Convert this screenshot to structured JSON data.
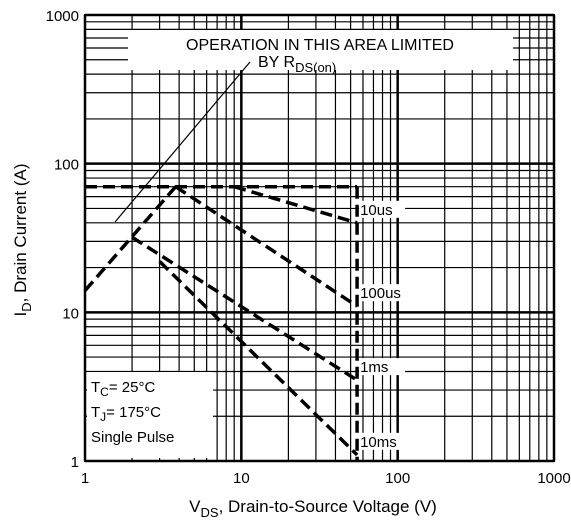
{
  "chart_data": {
    "type": "line",
    "xlabel": {
      "main": "V",
      "sub": "DS",
      "rest": ", Drain-to-Source Voltage (V)"
    },
    "ylabel": {
      "main": "I",
      "sub": "D",
      "rest": ", Drain Current (A)"
    },
    "xscale": "log",
    "yscale": "log",
    "xlim": [
      1,
      1000
    ],
    "ylim": [
      1,
      1000
    ],
    "xticks": [
      1,
      10,
      100,
      1000
    ],
    "yticks": [
      1,
      10,
      100,
      1000
    ],
    "grid": true,
    "minor_grid": true,
    "annotation": {
      "line1": "OPERATION IN THIS AREA LIMITED",
      "line2": "BY R",
      "line2_sub": "DS(on)"
    },
    "conditions": [
      {
        "main": "T",
        "sub": "C",
        "rest": "= 25°C"
      },
      {
        "main": "T",
        "sub": "J",
        "rest": "= 175°C"
      },
      {
        "main": "Single Pulse"
      }
    ],
    "series": [
      {
        "color": "#000000",
        "x": [
          1,
          3.8
        ],
        "values": [
          14,
          70
        ]
      },
      {
        "color": "#000000",
        "x": [
          1,
          55
        ],
        "values": [
          70,
          70
        ]
      },
      {
        "color": "#000000",
        "x": [
          55,
          55
        ],
        "values": [
          70,
          1
        ]
      },
      {
        "name": "10us",
        "color": "#000000",
        "x": [
          9,
          55
        ],
        "values": [
          70,
          40
        ]
      },
      {
        "name": "100us",
        "color": "#000000",
        "x": [
          3.8,
          55
        ],
        "values": [
          70,
          11
        ]
      },
      {
        "name": "1ms",
        "color": "#000000",
        "x": [
          2,
          55
        ],
        "values": [
          32,
          3.5
        ]
      },
      {
        "name": "10ms",
        "color": "#000000",
        "x": [
          3,
          55
        ],
        "values": [
          22,
          1.1
        ]
      }
    ]
  }
}
